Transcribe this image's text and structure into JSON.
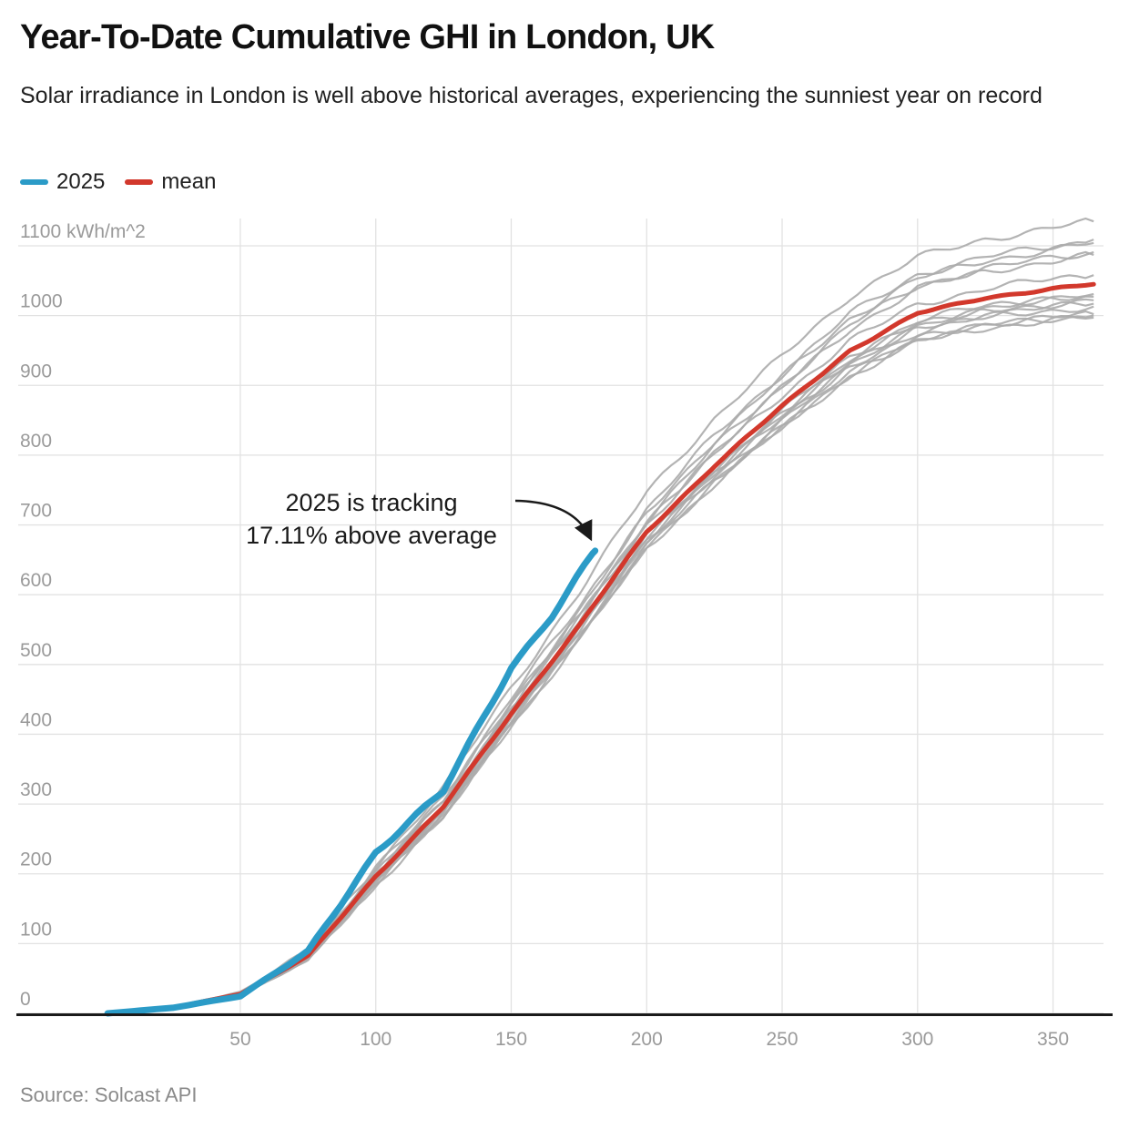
{
  "header": {
    "title": "Year-To-Date Cumulative GHI in London, UK",
    "subtitle": "Solar irradiance in London is well above historical averages, experiencing the sunniest year on record"
  },
  "legend": {
    "items": [
      {
        "label": "2025",
        "color": "#2B9BC7"
      },
      {
        "label": "mean",
        "color": "#D2382C"
      }
    ]
  },
  "annotation": {
    "line1": "2025 is tracking",
    "line2": "17.11% above average"
  },
  "footer": {
    "source": "Source: Solcast API"
  },
  "colors": {
    "line_2025": "#2B9BC7",
    "line_mean": "#D2382C",
    "line_historical": "#ABABAB",
    "gridline": "#E2E2E2",
    "axis": "#1A1A1A",
    "tick_label": "#9A9A9A"
  },
  "chart_data": {
    "type": "line",
    "title": "Year-To-Date Cumulative GHI in London, UK",
    "subtitle": "Solar irradiance in London is well above historical averages, experiencing the sunniest year on record",
    "y_unit": "kWh/m^2",
    "xlim": [
      0,
      370
    ],
    "ylim": [
      0,
      1140
    ],
    "grid": true,
    "legend_position": "top-left",
    "xticks": [
      50,
      100,
      150,
      200,
      250,
      300,
      350
    ],
    "yticks": [
      {
        "value": 0,
        "label": "0"
      },
      {
        "value": 100,
        "label": "100"
      },
      {
        "value": 200,
        "label": "200"
      },
      {
        "value": 300,
        "label": "300"
      },
      {
        "value": 400,
        "label": "400"
      },
      {
        "value": 500,
        "label": "500"
      },
      {
        "value": 600,
        "label": "600"
      },
      {
        "value": 700,
        "label": "700"
      },
      {
        "value": 800,
        "label": "800"
      },
      {
        "value": 900,
        "label": "900"
      },
      {
        "value": 1000,
        "label": "1000"
      },
      {
        "value": 1100,
        "label": "1100 kWh/m^2"
      }
    ],
    "series": [
      {
        "name": "2025",
        "color": "#2B9BC7",
        "days": [
          1,
          25,
          50,
          75,
          100,
          125,
          150,
          165,
          181
        ],
        "values": [
          0,
          8,
          25,
          88,
          232,
          318,
          497,
          570,
          663
        ]
      },
      {
        "name": "mean",
        "color": "#D2382C",
        "days": [
          1,
          25,
          50,
          75,
          100,
          125,
          150,
          175,
          200,
          225,
          250,
          275,
          300,
          325,
          350,
          365
        ],
        "values": [
          0,
          8,
          28,
          82,
          197,
          296,
          430,
          555,
          690,
          785,
          870,
          950,
          1003,
          1026,
          1038,
          1045
        ]
      }
    ],
    "historical_years": {
      "color": "#ABABAB",
      "sample_days": [
        1,
        25,
        50,
        75,
        100,
        125,
        150,
        175,
        200,
        225,
        250,
        275,
        300,
        325,
        350,
        365
      ],
      "values_at_sample_days": [
        [
          0,
          9,
          31,
          90,
          212,
          322,
          468,
          602,
          748,
          852,
          942,
          1028,
          1083,
          1110,
          1126,
          1135
        ],
        [
          0,
          8,
          29,
          86,
          206,
          312,
          452,
          582,
          722,
          828,
          917,
          1002,
          1059,
          1084,
          1099,
          1109
        ],
        [
          0,
          9,
          30,
          86,
          202,
          306,
          446,
          576,
          716,
          822,
          912,
          996,
          1053,
          1079,
          1095,
          1104
        ],
        [
          0,
          8,
          28,
          84,
          198,
          301,
          441,
          569,
          707,
          812,
          901,
          986,
          1043,
          1067,
          1083,
          1091
        ],
        [
          0,
          7,
          27,
          81,
          193,
          296,
          436,
          566,
          701,
          806,
          896,
          981,
          1039,
          1063,
          1079,
          1087
        ],
        [
          0,
          8,
          29,
          85,
          201,
          303,
          439,
          566,
          701,
          801,
          886,
          963,
          1016,
          1039,
          1052,
          1058
        ],
        [
          0,
          8,
          28,
          82,
          196,
          295,
          429,
          553,
          687,
          781,
          863,
          941,
          993,
          1014,
          1026,
          1031
        ],
        [
          0,
          7,
          26,
          79,
          191,
          291,
          426,
          551,
          685,
          779,
          861,
          937,
          989,
          1011,
          1022,
          1027
        ],
        [
          0,
          8,
          28,
          81,
          194,
          293,
          427,
          551,
          683,
          776,
          858,
          933,
          985,
          1006,
          1017,
          1022
        ],
        [
          0,
          8,
          27,
          80,
          191,
          289,
          423,
          547,
          679,
          773,
          854,
          929,
          981,
          1002,
          1012,
          1017
        ],
        [
          0,
          7,
          26,
          78,
          189,
          286,
          419,
          543,
          675,
          769,
          850,
          925,
          977,
          998,
          1008,
          1013
        ],
        [
          0,
          7,
          26,
          77,
          187,
          283,
          415,
          537,
          669,
          761,
          841,
          916,
          967,
          988,
          997,
          1002
        ],
        [
          0,
          8,
          27,
          79,
          189,
          285,
          417,
          539,
          671,
          763,
          843,
          917,
          966,
          986,
          996,
          1000
        ],
        [
          0,
          7,
          25,
          76,
          185,
          281,
          413,
          535,
          666,
          759,
          839,
          913,
          963,
          983,
          993,
          997
        ]
      ]
    },
    "annotation": {
      "text": "2025 is tracking 17.11% above average",
      "points_to": {
        "series": "2025",
        "day": 181
      }
    },
    "source": "Source: Solcast API"
  }
}
